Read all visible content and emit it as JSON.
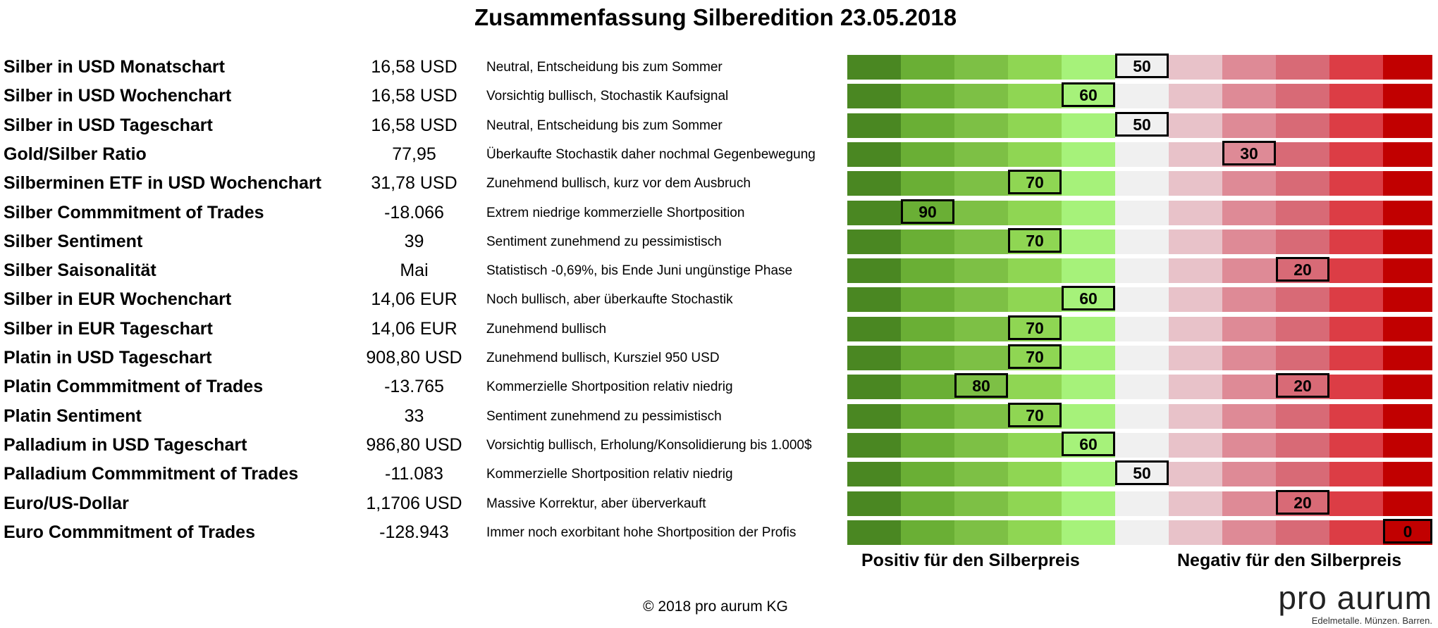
{
  "title": "Zusammenfassung Silberedition 23.05.2018",
  "scale_colors": [
    "#4a8722",
    "#6aaf35",
    "#7dc045",
    "#8fd653",
    "#a6f27a",
    "#f0f0f0",
    "#e8c2c9",
    "#de8a96",
    "#d86a76",
    "#dc3d45",
    "#c10000"
  ],
  "chart_data": {
    "type": "table",
    "scale": [
      100,
      90,
      80,
      70,
      60,
      50,
      40,
      30,
      20,
      10,
      0
    ],
    "rows": [
      {
        "label": "Silber in USD Monatschart",
        "value": "16,58 USD",
        "comment": "Neutral, Entscheidung bis zum Sommer",
        "scores": [
          50
        ]
      },
      {
        "label": "Silber in USD Wochenchart",
        "value": "16,58 USD",
        "comment": "Vorsichtig bullisch, Stochastik Kaufsignal",
        "scores": [
          60
        ]
      },
      {
        "label": "Silber in USD Tageschart",
        "value": "16,58 USD",
        "comment": "Neutral, Entscheidung bis zum Sommer",
        "scores": [
          50
        ]
      },
      {
        "label": "Gold/Silber Ratio",
        "value": "77,95",
        "comment": "Überkaufte Stochastik daher nochmal Gegenbewegung",
        "scores": [
          30
        ]
      },
      {
        "label": "Silberminen ETF in USD Wochenchart",
        "value": "31,78 USD",
        "comment": "Zunehmend bullisch, kurz vor dem Ausbruch",
        "scores": [
          70
        ]
      },
      {
        "label": "Silber Commmitment of Trades",
        "value": "-18.066",
        "comment": "Extrem niedrige kommerzielle Shortposition",
        "scores": [
          90
        ]
      },
      {
        "label": "Silber Sentiment",
        "value": "39",
        "comment": "Sentiment zunehmend zu pessimistisch",
        "scores": [
          70
        ]
      },
      {
        "label": "Silber Saisonalität",
        "value": "Mai",
        "comment": "Statistisch -0,69%, bis Ende Juni ungünstige Phase",
        "scores": [
          20
        ]
      },
      {
        "label": "Silber in EUR Wochenchart",
        "value": "14,06 EUR",
        "comment": "Noch bullisch, aber überkaufte Stochastik",
        "scores": [
          60
        ]
      },
      {
        "label": "Silber in EUR Tageschart",
        "value": "14,06 EUR",
        "comment": "Zunehmend bullisch",
        "scores": [
          70
        ]
      },
      {
        "label": "Platin in USD Tageschart",
        "value": "908,80 USD",
        "comment": "Zunehmend bullisch, Kursziel 950 USD",
        "scores": [
          70
        ]
      },
      {
        "label": "Platin Commmitment of Trades",
        "value": "-13.765",
        "comment": "Kommerzielle Shortposition relativ niedrig",
        "scores": [
          80,
          20
        ]
      },
      {
        "label": "Platin Sentiment",
        "value": "33",
        "comment": "Sentiment zunehmend zu pessimistisch",
        "scores": [
          70
        ]
      },
      {
        "label": "Palladium in USD Tageschart",
        "value": "986,80 USD",
        "comment": "Vorsichtig bullisch, Erholung/Konsolidierung bis 1.000$",
        "scores": [
          60
        ]
      },
      {
        "label": "Palladium Commmitment of Trades",
        "value": "-11.083",
        "comment": "Kommerzielle Shortposition relativ niedrig",
        "scores": [
          50
        ]
      },
      {
        "label": "Euro/US-Dollar",
        "value": "1,1706 USD",
        "comment": "Massive Korrektur, aber überverkauft",
        "scores": [
          20
        ]
      },
      {
        "label": "Euro Commmitment of Trades",
        "value": "-128.943",
        "comment": "Immer noch exorbitant hohe Shortposition der Profis",
        "scores": [
          0
        ]
      }
    ]
  },
  "legend": {
    "positive": "Positiv für den Silberpreis",
    "negative": "Negativ für den Silberpreis"
  },
  "copyright": "© 2018 pro aurum KG",
  "logo": {
    "brand": "pro aurum",
    "tagline": "Edelmetalle. Münzen. Barren."
  }
}
